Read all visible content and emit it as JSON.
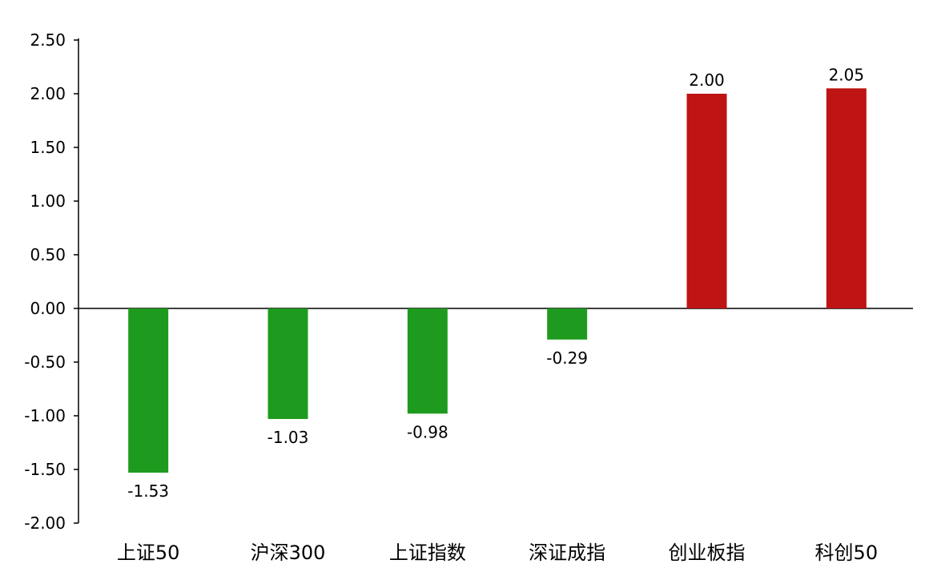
{
  "chart_data": {
    "type": "bar",
    "categories": [
      "上证50",
      "沪深300",
      "上证指数",
      "深证成指",
      "创业板指",
      "科创50"
    ],
    "values": [
      -1.53,
      -1.03,
      -0.98,
      -0.29,
      2.0,
      2.05
    ],
    "data_labels": [
      "-1.53",
      "-1.03",
      "-0.98",
      "-0.29",
      "2.00",
      "2.05"
    ],
    "title": "",
    "xlabel": "",
    "ylabel": "",
    "ylim": [
      -2.0,
      2.5
    ],
    "yticks": [
      "-2.00",
      "-1.50",
      "-1.00",
      "-0.50",
      "0.00",
      "0.50",
      "1.00",
      "1.50",
      "2.00",
      "2.50"
    ],
    "grid": false,
    "legend": "none",
    "colors": {
      "positive": "#BE1414",
      "negative": "#1E9B1E",
      "axis": "#000000"
    }
  }
}
